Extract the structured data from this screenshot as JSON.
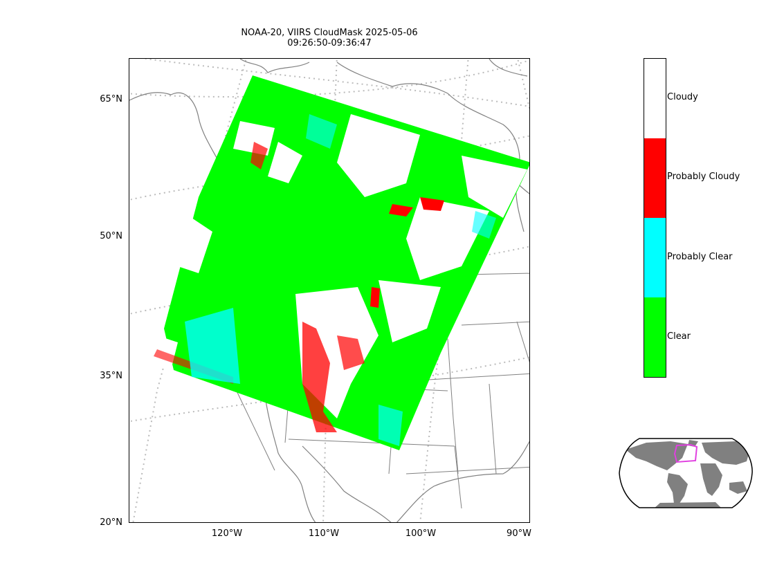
{
  "title": {
    "line1": "NOAA-20, VIIRS CloudMask 2025-05-06",
    "line2": "09:26:50-09:36:47"
  },
  "axes": {
    "lat_labels": [
      "65°N",
      "50°N",
      "35°N",
      "20°N"
    ],
    "lon_labels": [
      "120°W",
      "110°W",
      "100°W",
      "90°W"
    ]
  },
  "legend": {
    "title": "",
    "classes": [
      {
        "label": "Cloudy",
        "color": "#ffffff"
      },
      {
        "label": "Probably Cloudy",
        "color": "#ff0000"
      },
      {
        "label": "Probably Clear",
        "color": "#00ffff"
      },
      {
        "label": "Clear",
        "color": "#00ff00"
      }
    ]
  },
  "colors": {
    "coastline": "#808080",
    "graticule": "#bbbbbb",
    "land_inset": "#808080",
    "swath_box": "#e040e0"
  }
}
